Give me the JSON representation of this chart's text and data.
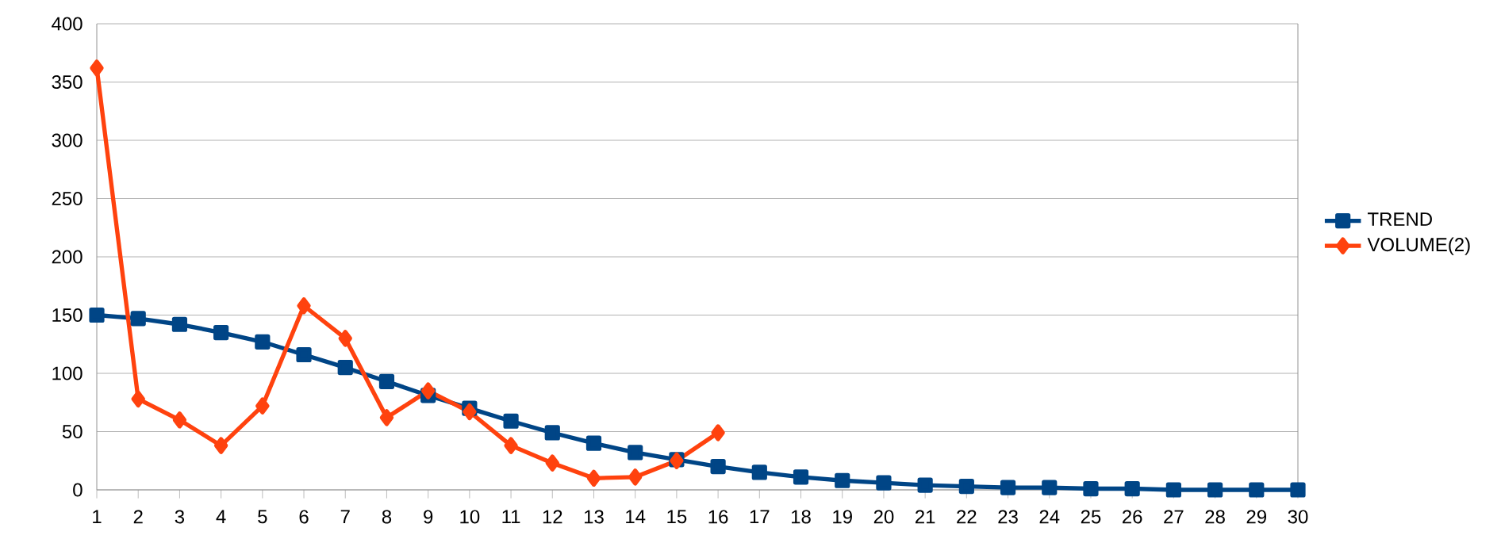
{
  "chart_data": {
    "type": "line",
    "categories": [
      "1",
      "2",
      "3",
      "4",
      "5",
      "6",
      "7",
      "8",
      "9",
      "10",
      "11",
      "12",
      "13",
      "14",
      "15",
      "16",
      "17",
      "18",
      "19",
      "20",
      "21",
      "22",
      "23",
      "24",
      "25",
      "26",
      "27",
      "28",
      "29",
      "30"
    ],
    "series": [
      {
        "name": "TREND",
        "color": "#004586",
        "marker": "square",
        "values": [
          150,
          147,
          142,
          135,
          127,
          116,
          105,
          93,
          81,
          70,
          59,
          49,
          40,
          32,
          26,
          20,
          15,
          11,
          8,
          6,
          4,
          3,
          2,
          2,
          1,
          1,
          0,
          0,
          0,
          0
        ]
      },
      {
        "name": "VOLUME(2)",
        "color": "#ff420e",
        "marker": "diamond",
        "values": [
          362,
          78,
          60,
          38,
          72,
          158,
          130,
          62,
          85,
          67,
          38,
          23,
          10,
          11,
          25,
          49,
          null,
          null,
          null,
          null,
          null,
          null,
          null,
          null,
          null,
          null,
          null,
          null,
          null,
          null
        ]
      }
    ],
    "ylim": [
      0,
      400
    ],
    "yticks": [
      0,
      50,
      100,
      150,
      200,
      250,
      300,
      350,
      400
    ],
    "grid": "y",
    "legend": "right",
    "line_style": "solid"
  }
}
